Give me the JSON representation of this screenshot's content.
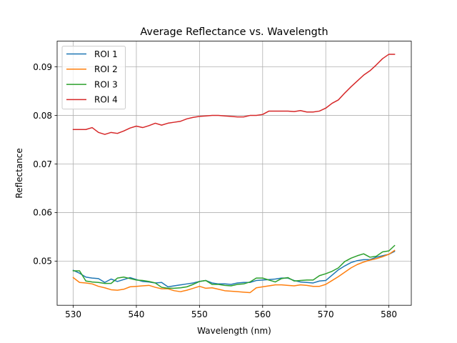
{
  "chart_data": {
    "type": "line",
    "title": "Average Reflectance vs. Wavelength",
    "xlabel": "Wavelength (nm)",
    "ylabel": "Reflectance",
    "xlim": [
      527.45,
      583.55
    ],
    "ylim": [
      0.0409,
      0.0953
    ],
    "xticks": [
      530,
      540,
      550,
      560,
      570,
      580
    ],
    "yticks": [
      0.05,
      0.06,
      0.07,
      0.08,
      0.09
    ],
    "ytick_labels": [
      "0.05",
      "0.06",
      "0.07",
      "0.08",
      "0.09"
    ],
    "grid": true,
    "legend_position": "upper-left",
    "x": [
      530.0,
      531.0,
      532.0,
      533.0,
      534.0,
      535.0,
      536.0,
      537.0,
      538.0,
      539.0,
      540.0,
      541.0,
      542.0,
      543.0,
      544.0,
      545.0,
      546.0,
      547.0,
      548.0,
      549.0,
      550.0,
      551.0,
      552.0,
      553.0,
      554.0,
      555.0,
      556.0,
      557.0,
      558.0,
      559.0,
      560.0,
      561.0,
      562.0,
      563.0,
      564.0,
      565.0,
      566.0,
      567.0,
      568.0,
      569.0,
      570.0,
      571.0,
      572.0,
      573.0,
      574.0,
      575.0,
      576.0,
      577.0,
      578.0,
      579.0,
      580.0,
      580.9
    ],
    "series": [
      {
        "name": "ROI 1",
        "color": "#1f77b4",
        "values": [
          0.0481,
          0.0475,
          0.0467,
          0.0465,
          0.0464,
          0.0456,
          0.0463,
          0.0458,
          0.0462,
          0.0466,
          0.0462,
          0.0458,
          0.0457,
          0.0455,
          0.0456,
          0.0447,
          0.0449,
          0.0451,
          0.0453,
          0.0455,
          0.0458,
          0.046,
          0.0455,
          0.0453,
          0.0453,
          0.0452,
          0.0455,
          0.0456,
          0.0456,
          0.046,
          0.0461,
          0.0462,
          0.0463,
          0.0465,
          0.0465,
          0.046,
          0.0457,
          0.0456,
          0.0455,
          0.0459,
          0.046,
          0.0471,
          0.0482,
          0.049,
          0.0497,
          0.0501,
          0.0503,
          0.0503,
          0.0508,
          0.0511,
          0.0514,
          0.052
        ]
      },
      {
        "name": "ROI 2",
        "color": "#ff7f0e",
        "values": [
          0.0466,
          0.0456,
          0.0455,
          0.0453,
          0.0448,
          0.0445,
          0.0441,
          0.044,
          0.0442,
          0.0447,
          0.0448,
          0.0449,
          0.045,
          0.0446,
          0.0443,
          0.0443,
          0.0439,
          0.0437,
          0.044,
          0.0444,
          0.0448,
          0.0444,
          0.0445,
          0.0442,
          0.0439,
          0.0438,
          0.0437,
          0.0436,
          0.0435,
          0.0445,
          0.0447,
          0.0449,
          0.0451,
          0.0451,
          0.045,
          0.0449,
          0.0451,
          0.045,
          0.0448,
          0.0448,
          0.0452,
          0.046,
          0.0468,
          0.0477,
          0.0486,
          0.0493,
          0.0498,
          0.0502,
          0.0505,
          0.0509,
          0.0514,
          0.0522
        ]
      },
      {
        "name": "ROI 3",
        "color": "#2ca02c",
        "values": [
          0.048,
          0.048,
          0.0459,
          0.0457,
          0.0456,
          0.0454,
          0.0454,
          0.0465,
          0.0467,
          0.0464,
          0.0461,
          0.046,
          0.0458,
          0.0455,
          0.0446,
          0.0444,
          0.0444,
          0.0445,
          0.0447,
          0.0452,
          0.0458,
          0.046,
          0.0452,
          0.0452,
          0.045,
          0.0449,
          0.0452,
          0.0453,
          0.0457,
          0.0465,
          0.0465,
          0.0461,
          0.0457,
          0.0464,
          0.0466,
          0.0459,
          0.046,
          0.0461,
          0.0461,
          0.047,
          0.0474,
          0.0479,
          0.0486,
          0.0499,
          0.0506,
          0.0511,
          0.0515,
          0.0508,
          0.051,
          0.0519,
          0.0521,
          0.0532
        ]
      },
      {
        "name": "ROI 4",
        "color": "#d62728",
        "values": [
          0.0771,
          0.0771,
          0.0771,
          0.0775,
          0.0765,
          0.0761,
          0.0765,
          0.0763,
          0.0768,
          0.0774,
          0.0778,
          0.0775,
          0.0779,
          0.0784,
          0.078,
          0.0784,
          0.0786,
          0.0788,
          0.0793,
          0.0796,
          0.0798,
          0.0799,
          0.08,
          0.08,
          0.0799,
          0.0798,
          0.0797,
          0.0797,
          0.08,
          0.08,
          0.0802,
          0.0809,
          0.0809,
          0.0809,
          0.0809,
          0.0808,
          0.081,
          0.0807,
          0.0807,
          0.0809,
          0.0815,
          0.0825,
          0.0832,
          0.0846,
          0.0859,
          0.0871,
          0.0883,
          0.0892,
          0.0904,
          0.0917,
          0.0926,
          0.0926
        ]
      }
    ]
  }
}
